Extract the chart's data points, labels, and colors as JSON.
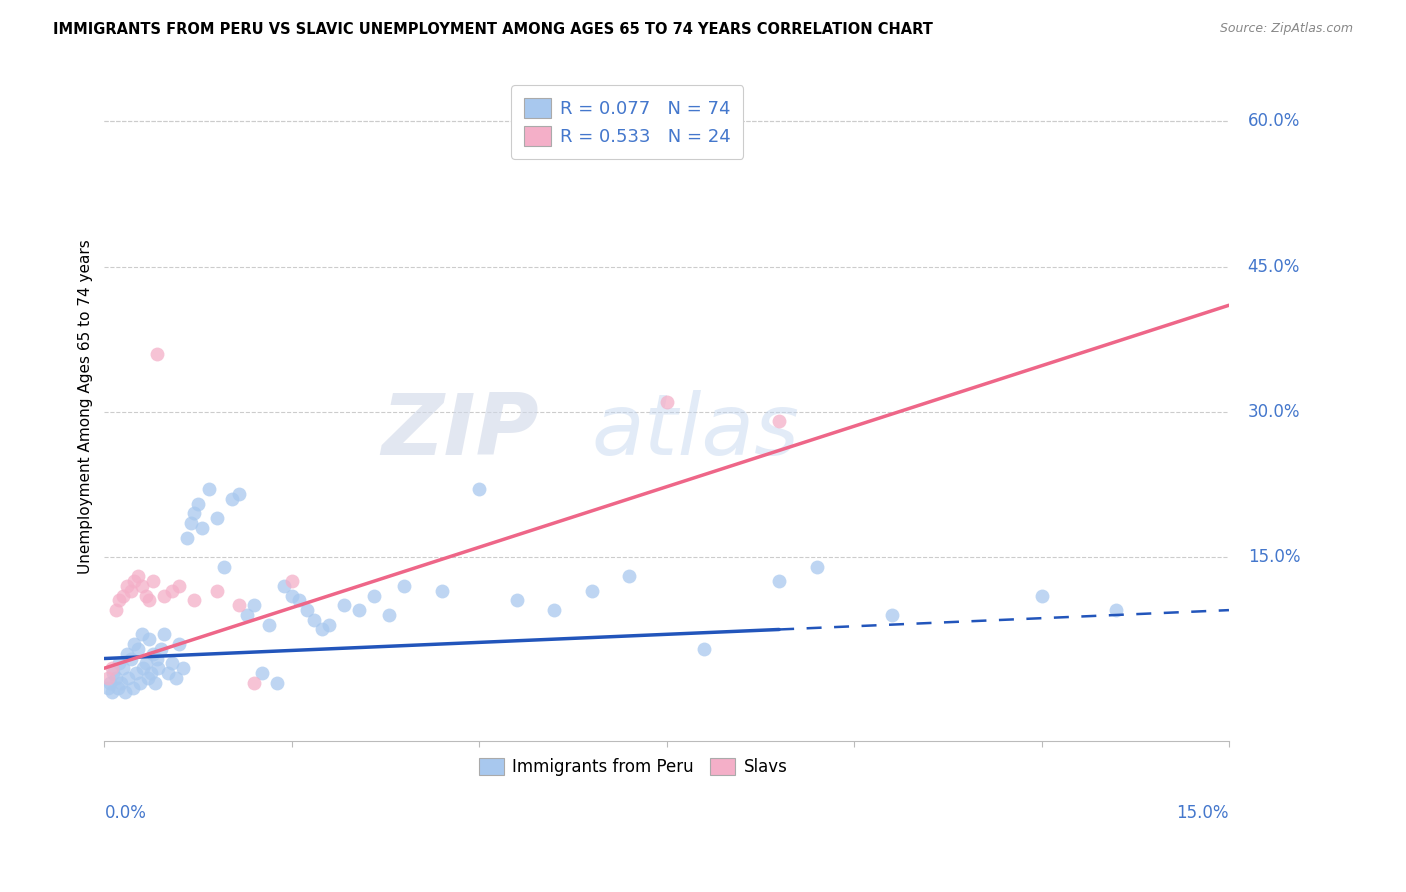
{
  "title": "IMMIGRANTS FROM PERU VS SLAVIC UNEMPLOYMENT AMONG AGES 65 TO 74 YEARS CORRELATION CHART",
  "source": "Source: ZipAtlas.com",
  "ylabel": "Unemployment Among Ages 65 to 74 years",
  "ytick_labels": [
    "0.0%",
    "15.0%",
    "30.0%",
    "45.0%",
    "60.0%"
  ],
  "ytick_values": [
    0.0,
    15.0,
    30.0,
    45.0,
    60.0
  ],
  "xmin": 0.0,
  "xmax": 15.0,
  "ymin": -4.0,
  "ymax": 65.0,
  "legend1_r": "R = 0.077",
  "legend1_n": "N = 74",
  "legend2_r": "R = 0.533",
  "legend2_n": "N = 24",
  "color_peru": "#a8c8ee",
  "color_slavs": "#f4afc8",
  "color_line_peru": "#2255bb",
  "color_line_slavs": "#ee6688",
  "color_axis_labels": "#4477cc",
  "watermark_zip": "ZIP",
  "watermark_atlas": "atlas",
  "peru_x": [
    0.05,
    0.08,
    0.1,
    0.12,
    0.15,
    0.18,
    0.2,
    0.22,
    0.25,
    0.28,
    0.3,
    0.32,
    0.35,
    0.38,
    0.4,
    0.42,
    0.45,
    0.48,
    0.5,
    0.52,
    0.55,
    0.58,
    0.6,
    0.62,
    0.65,
    0.68,
    0.7,
    0.72,
    0.75,
    0.8,
    0.85,
    0.9,
    0.95,
    1.0,
    1.05,
    1.1,
    1.15,
    1.2,
    1.25,
    1.3,
    1.4,
    1.5,
    1.6,
    1.7,
    1.8,
    1.9,
    2.0,
    2.1,
    2.2,
    2.3,
    2.4,
    2.5,
    2.6,
    2.7,
    2.8,
    2.9,
    3.0,
    3.2,
    3.4,
    3.6,
    3.8,
    4.0,
    4.5,
    5.0,
    5.5,
    6.0,
    6.5,
    7.0,
    8.0,
    9.0,
    9.5,
    10.5,
    12.5,
    13.5
  ],
  "peru_y": [
    1.5,
    2.0,
    1.0,
    3.0,
    2.5,
    1.5,
    4.0,
    2.0,
    3.5,
    1.0,
    5.0,
    2.5,
    4.5,
    1.5,
    6.0,
    3.0,
    5.5,
    2.0,
    7.0,
    3.5,
    4.0,
    2.5,
    6.5,
    3.0,
    5.0,
    2.0,
    4.5,
    3.5,
    5.5,
    7.0,
    3.0,
    4.0,
    2.5,
    6.0,
    3.5,
    17.0,
    18.5,
    19.5,
    20.5,
    18.0,
    22.0,
    19.0,
    14.0,
    21.0,
    21.5,
    9.0,
    10.0,
    3.0,
    8.0,
    2.0,
    12.0,
    11.0,
    10.5,
    9.5,
    8.5,
    7.5,
    8.0,
    10.0,
    9.5,
    11.0,
    9.0,
    12.0,
    11.5,
    22.0,
    10.5,
    9.5,
    11.5,
    13.0,
    5.5,
    12.5,
    14.0,
    9.0,
    11.0,
    9.5
  ],
  "slavs_x": [
    0.05,
    0.1,
    0.15,
    0.2,
    0.25,
    0.3,
    0.35,
    0.4,
    0.45,
    0.5,
    0.55,
    0.6,
    0.65,
    0.7,
    0.8,
    0.9,
    1.0,
    1.2,
    1.5,
    1.8,
    2.0,
    2.5,
    7.5,
    9.0
  ],
  "slavs_y": [
    2.5,
    3.5,
    9.5,
    10.5,
    11.0,
    12.0,
    11.5,
    12.5,
    13.0,
    12.0,
    11.0,
    10.5,
    12.5,
    36.0,
    11.0,
    11.5,
    12.0,
    10.5,
    11.5,
    10.0,
    2.0,
    12.5,
    31.0,
    29.0
  ],
  "peru_line_x0": 0.0,
  "peru_line_y0": 4.5,
  "peru_line_x1": 9.0,
  "peru_line_y1": 7.5,
  "peru_dash_x0": 9.0,
  "peru_dash_x1": 15.0,
  "slavs_line_x0": 0.0,
  "slavs_line_y0": 3.5,
  "slavs_line_x1": 15.0,
  "slavs_line_y1": 41.0
}
